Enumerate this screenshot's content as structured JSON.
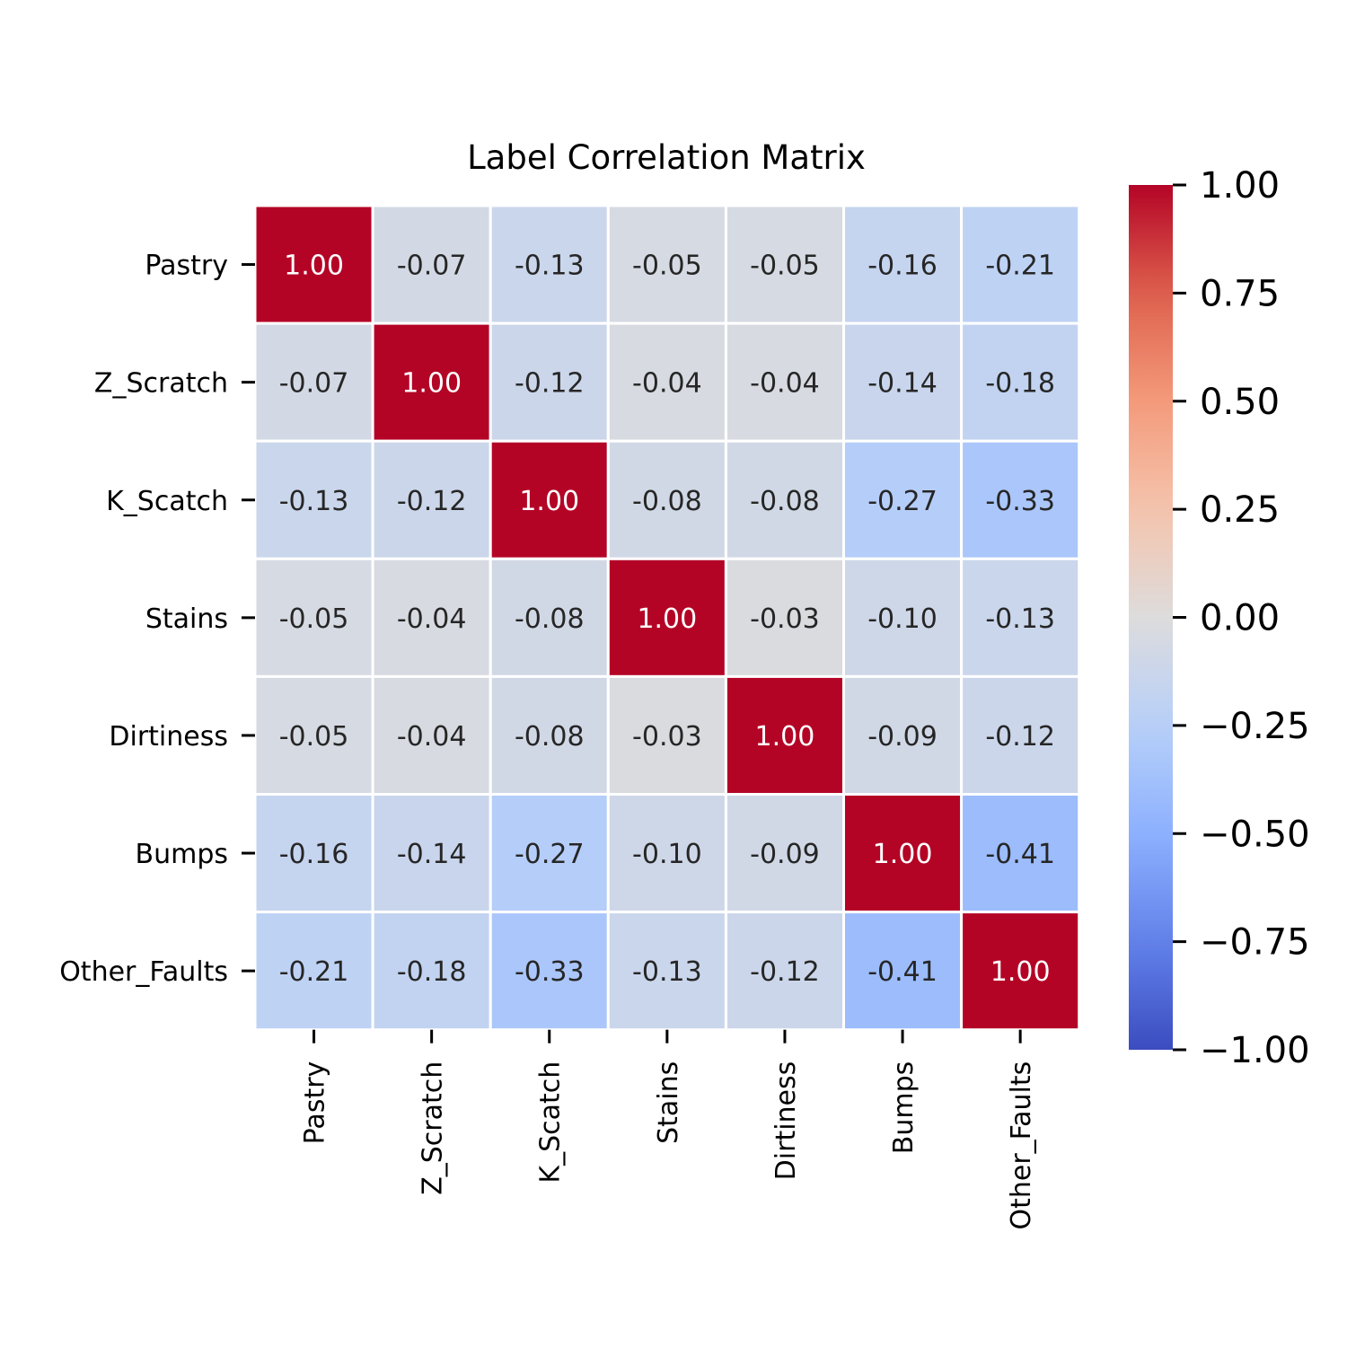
{
  "chart_data": {
    "type": "heatmap",
    "title": "Label Correlation Matrix",
    "rows": [
      "Pastry",
      "Z_Scratch",
      "K_Scatch",
      "Stains",
      "Dirtiness",
      "Bumps",
      "Other_Faults"
    ],
    "columns": [
      "Pastry",
      "Z_Scratch",
      "K_Scatch",
      "Stains",
      "Dirtiness",
      "Bumps",
      "Other_Faults"
    ],
    "values": [
      [
        1.0,
        -0.07,
        -0.13,
        -0.05,
        -0.05,
        -0.16,
        -0.21
      ],
      [
        -0.07,
        1.0,
        -0.12,
        -0.04,
        -0.04,
        -0.14,
        -0.18
      ],
      [
        -0.13,
        -0.12,
        1.0,
        -0.08,
        -0.08,
        -0.27,
        -0.33
      ],
      [
        -0.05,
        -0.04,
        -0.08,
        1.0,
        -0.03,
        -0.1,
        -0.13
      ],
      [
        -0.05,
        -0.04,
        -0.08,
        -0.03,
        1.0,
        -0.09,
        -0.12
      ],
      [
        -0.16,
        -0.14,
        -0.27,
        -0.1,
        -0.09,
        1.0,
        -0.41
      ],
      [
        -0.21,
        -0.18,
        -0.33,
        -0.13,
        -0.12,
        -0.41,
        1.0
      ]
    ],
    "value_format": "2 decimals",
    "colormap": "coolwarm",
    "vmin": -1.0,
    "vmax": 1.0,
    "colorbar": {
      "ticks": [
        1.0,
        0.75,
        0.5,
        0.25,
        0.0,
        -0.25,
        -0.5,
        -0.75,
        -1.0
      ],
      "tick_labels": [
        "1.00",
        "0.75",
        "0.50",
        "0.25",
        "0.00",
        "−0.25",
        "−0.50",
        "−0.75",
        "−1.00"
      ]
    },
    "cell_border_color": "#ffffff",
    "text_color_dark": "#262626",
    "text_color_light": "#ffffff"
  }
}
